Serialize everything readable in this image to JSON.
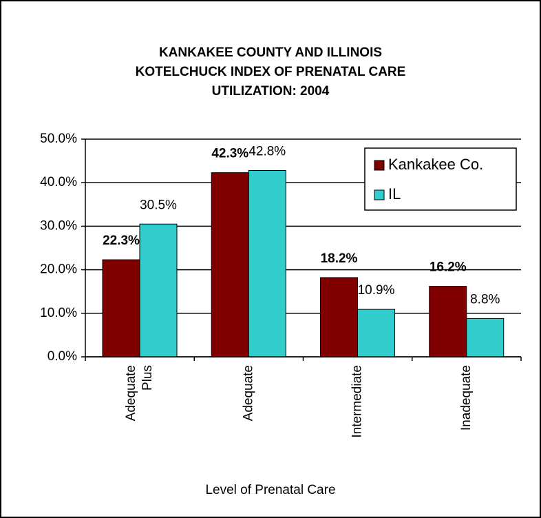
{
  "chart_data": {
    "type": "bar",
    "title": [
      "KANKAKEE COUNTY AND ILLINOIS",
      "KOTELCHUCK INDEX OF PRENATAL CARE",
      "UTILIZATION:  2004"
    ],
    "x_label": "Level of Prenatal Care",
    "categories": [
      "Adequate Plus",
      "Adequate",
      "Intermediate",
      "Inadequate"
    ],
    "series": [
      {
        "name": "Kankakee Co.",
        "color": "#800000",
        "values": [
          22.3,
          42.3,
          18.2,
          16.2
        ],
        "value_labels": [
          "22.3%",
          "42.3%",
          "18.2%",
          "16.2%"
        ]
      },
      {
        "name": "IL",
        "color": "#33cccc",
        "values": [
          30.5,
          42.8,
          10.9,
          8.8
        ],
        "value_labels": [
          "30.5%",
          "42.8%",
          "10.9%",
          "8.8%"
        ]
      }
    ],
    "ylim": [
      0,
      50
    ],
    "yticks": [
      {
        "value": 0,
        "label": "0.0%"
      },
      {
        "value": 10,
        "label": "10.0%"
      },
      {
        "value": 20,
        "label": "20.0%"
      },
      {
        "value": 30,
        "label": "30.0%"
      },
      {
        "value": 40,
        "label": "40.0%"
      },
      {
        "value": 50,
        "label": "50.0%"
      }
    ],
    "grid": true,
    "legend": "upper right"
  }
}
